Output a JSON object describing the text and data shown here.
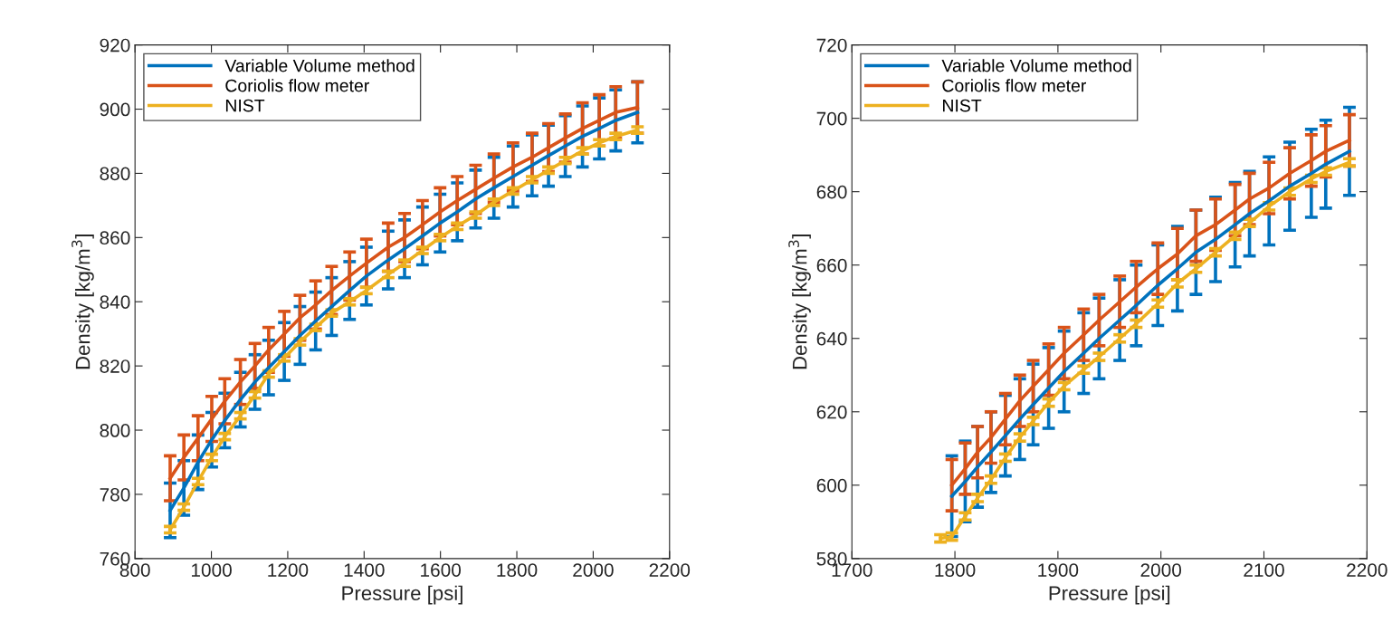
{
  "chart_data": [
    {
      "type": "line",
      "xlabel": "Pressure [psi]",
      "ylabel": "Density [kg/m$^{3}$]",
      "xlim": [
        800,
        2200
      ],
      "xticks": [
        800,
        1000,
        1200,
        1400,
        1600,
        1800,
        2000,
        2200
      ],
      "ylim": [
        760,
        920
      ],
      "yticks": [
        760,
        780,
        800,
        820,
        840,
        860,
        880,
        900,
        920
      ],
      "grid": false,
      "legend": "top left",
      "marker": "none",
      "line_style": "solid",
      "x": [
        892,
        928,
        965,
        1001,
        1035,
        1076,
        1114,
        1150,
        1191,
        1232,
        1273,
        1315,
        1362,
        1406,
        1463,
        1506,
        1553,
        1599,
        1644,
        1692,
        1740,
        1790,
        1840,
        1883,
        1927,
        1972,
        2016,
        2059,
        2116
      ],
      "series": [
        {
          "name": "Variable Volume method",
          "color": "#0072bd",
          "values": [
            775,
            782,
            790,
            797,
            803,
            809.5,
            815,
            819.5,
            824.5,
            829.5,
            834,
            838.5,
            843.5,
            848,
            853,
            856.5,
            860.5,
            864.5,
            868,
            872,
            875.5,
            879,
            882.5,
            885.5,
            888.5,
            891.5,
            894,
            896.5,
            899
          ],
          "errors": [
            8.5,
            8.5,
            8.5,
            8.5,
            8.5,
            8.5,
            8.5,
            8.5,
            9,
            9,
            9,
            9,
            9,
            9,
            9,
            9,
            9,
            9,
            9,
            9,
            9.5,
            9.5,
            9.5,
            9.5,
            9.5,
            9.5,
            9.5,
            9.5,
            9.5
          ]
        },
        {
          "name": "Coriolis flow meter",
          "color": "#d95319",
          "values": [
            785,
            791.5,
            797.5,
            803.5,
            809,
            815,
            820,
            825,
            830,
            835,
            839,
            843.5,
            848,
            852,
            857,
            860,
            864,
            868,
            871.5,
            875,
            878.5,
            882,
            885,
            888,
            891,
            894,
            896.5,
            899,
            900.5
          ],
          "errors": [
            7,
            7,
            7,
            7,
            7,
            7,
            7,
            7,
            7,
            7,
            7.5,
            7.5,
            7.5,
            7.5,
            7.5,
            7.5,
            7.5,
            7.5,
            7.5,
            7.5,
            7.5,
            7.5,
            7.5,
            7.5,
            7.5,
            8,
            8,
            8,
            8
          ]
        },
        {
          "name": "NIST",
          "color": "#edb120",
          "values": [
            769,
            776,
            784,
            791.5,
            798,
            804.5,
            811,
            817.5,
            822.5,
            827.5,
            832,
            836.5,
            840,
            843.5,
            848.5,
            852,
            856,
            860,
            863.5,
            867,
            871,
            874.5,
            878,
            881,
            884,
            887,
            889.5,
            891.5,
            893.5
          ],
          "errors": [
            1,
            1,
            1,
            1,
            1,
            1,
            1,
            1,
            1,
            1,
            1,
            1,
            1,
            1,
            1,
            1,
            1,
            1,
            1,
            1,
            1,
            1,
            1,
            1,
            1,
            1,
            1,
            1,
            1
          ]
        }
      ]
    },
    {
      "type": "line",
      "xlabel": "Pressure [psi]",
      "ylabel": "Density [kg/m$^{3}$]",
      "xlim": [
        1700,
        2200
      ],
      "xticks": [
        1700,
        1800,
        1900,
        2000,
        2100,
        2200
      ],
      "ylim": [
        580,
        720
      ],
      "yticks": [
        580,
        600,
        620,
        640,
        660,
        680,
        700,
        720
      ],
      "grid": false,
      "legend": "top left",
      "marker": "none",
      "line_style": "solid",
      "x": [
        1797,
        1810,
        1822,
        1835,
        1849,
        1863,
        1876,
        1891,
        1906,
        1925,
        1940,
        1960,
        1976,
        1997,
        2016,
        2034,
        2053,
        2072,
        2086,
        2105,
        2125,
        2146,
        2160,
        2183
      ],
      "series": [
        {
          "name": "Variable Volume method",
          "color": "#0072bd",
          "values": [
            597,
            601,
            605,
            609,
            613.5,
            618,
            622,
            626.5,
            631,
            636,
            640,
            645,
            649,
            654.5,
            659,
            663.5,
            667,
            671,
            674,
            677.5,
            681.5,
            685,
            687.5,
            691
          ],
          "errors": [
            11,
            11,
            11,
            11,
            11,
            11,
            11,
            11,
            11,
            11,
            11,
            11,
            11,
            11,
            11.5,
            11.5,
            11.5,
            11.5,
            11.5,
            12,
            12,
            12,
            12,
            12
          ]
        },
        {
          "name": "Coriolis flow meter",
          "color": "#d95319",
          "values": [
            600,
            604.5,
            609,
            613,
            618,
            623,
            627,
            631.5,
            636,
            641,
            645,
            650,
            654,
            659,
            663,
            668,
            671,
            675,
            678,
            681,
            685,
            688.5,
            691,
            694
          ],
          "errors": [
            7,
            7,
            7,
            7,
            7,
            7,
            7,
            7,
            7,
            7,
            7,
            7,
            7,
            7,
            7,
            7,
            7,
            7,
            7,
            7,
            7,
            7,
            7,
            7
          ]
        },
        {
          "name": "NIST",
          "color": "#edb120",
          "x": [
            1786,
            1797,
            1810,
            1822,
            1835,
            1849,
            1863,
            1876,
            1891,
            1906,
            1925,
            1940,
            1960,
            1976,
            1997,
            2016,
            2034,
            2053,
            2072,
            2086,
            2105,
            2125,
            2146,
            2160,
            2183
          ],
          "values": [
            585.5,
            586,
            591.5,
            596.5,
            601.5,
            607.5,
            613,
            617.5,
            622.5,
            627,
            631.5,
            635,
            640,
            644,
            649.5,
            655,
            659,
            663.5,
            668,
            671.5,
            676,
            680,
            683.5,
            685.5,
            688
          ],
          "errors": [
            1,
            1,
            1,
            1,
            1,
            1,
            1,
            1,
            1,
            1,
            1,
            1,
            1,
            1,
            1,
            1,
            1,
            1,
            1,
            1,
            1,
            1,
            1,
            1,
            1
          ]
        }
      ]
    }
  ]
}
